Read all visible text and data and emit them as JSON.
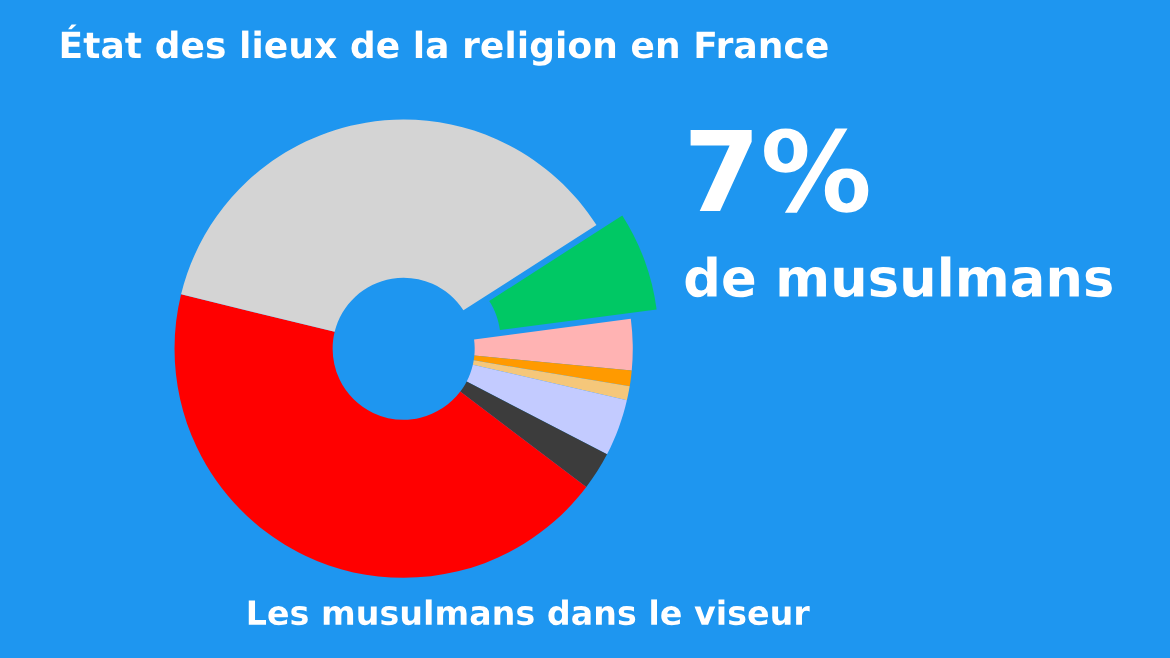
{
  "chart_data": {
    "type": "donut",
    "title": "État des lieux de la religion en France",
    "categories": [
      null,
      null,
      null,
      null,
      null,
      null,
      null,
      null
    ],
    "values": [
      7,
      3.6,
      1.1,
      1,
      4,
      2.7,
      43.5,
      37.1
    ],
    "colors": [
      "#00c864",
      "#ffb3b3",
      "#ff9a00",
      "#f5c77a",
      "#c3cbff",
      "#3c3c3c",
      "#ff0000",
      "#d4d4d4"
    ],
    "value_labels": [
      "7%",
      null,
      null,
      null,
      null,
      null,
      null,
      null
    ],
    "annotations": [
      "de musulmans",
      "Les musulmans dans le viseur"
    ]
  }
}
